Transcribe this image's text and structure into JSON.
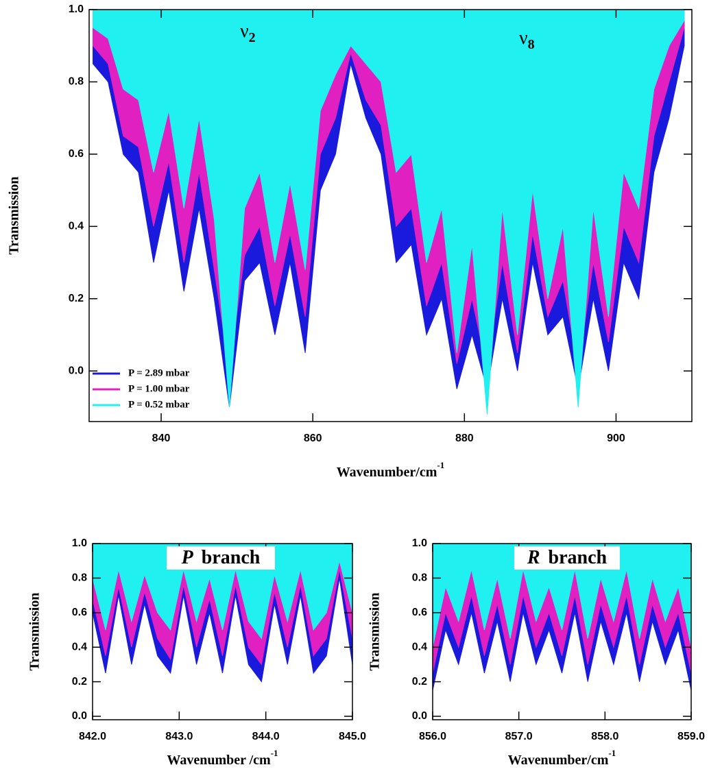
{
  "chart_data": [
    {
      "type": "area",
      "x_label": {
        "text": "Wavenumber/cm",
        "sup": "-1"
      },
      "y_label": "Transmission",
      "xlim": [
        830.5,
        910
      ],
      "ylim": [
        -0.14,
        1.0
      ],
      "xticks": [
        840,
        860,
        880,
        900
      ],
      "yticks": [
        {
          "value": 0,
          "label": "0.0"
        },
        {
          "value": 0.2,
          "label": "0.2"
        },
        {
          "value": 0.4,
          "label": "0.4"
        },
        {
          "value": 0.6,
          "label": "0.6"
        },
        {
          "value": 0.8,
          "label": "0.8"
        },
        {
          "value": 1,
          "label": "1.0"
        }
      ],
      "annotations": [
        {
          "symbol": "ν",
          "subscript": "2"
        },
        {
          "symbol": "ν",
          "subscript": "8"
        }
      ],
      "legend": "lower left",
      "x": [
        831,
        833,
        835,
        837,
        839,
        841,
        843,
        845,
        847,
        849,
        851,
        853,
        855,
        857,
        859,
        861,
        863,
        865,
        867,
        869,
        871,
        873,
        875,
        877,
        879,
        881,
        883,
        885,
        887,
        889,
        891,
        893,
        895,
        897,
        899,
        901,
        903,
        905,
        907,
        909
      ],
      "series": [
        {
          "name": "P = 2.89 mbar",
          "color": "#1a1adc",
          "values": [
            0.85,
            0.8,
            0.6,
            0.55,
            0.3,
            0.5,
            0.22,
            0.45,
            0.2,
            -0.1,
            0.25,
            0.3,
            0.1,
            0.3,
            0.05,
            0.5,
            0.6,
            0.85,
            0.7,
            0.6,
            0.3,
            0.35,
            0.1,
            0.2,
            -0.05,
            0.1,
            -0.05,
            0.2,
            0,
            0.3,
            0.1,
            0.15,
            -0.05,
            0.2,
            0,
            0.3,
            0.2,
            0.55,
            0.7,
            0.9
          ]
        },
        {
          "name": "P = 1.00 mbar",
          "color": "#e020c0",
          "values": [
            0.9,
            0.85,
            0.65,
            0.62,
            0.4,
            0.58,
            0.3,
            0.55,
            0.28,
            0,
            0.32,
            0.4,
            0.18,
            0.38,
            0.15,
            0.6,
            0.7,
            0.88,
            0.75,
            0.68,
            0.4,
            0.45,
            0.18,
            0.3,
            0.02,
            0.2,
            0,
            0.3,
            0.05,
            0.38,
            0.15,
            0.25,
            0,
            0.3,
            0.08,
            0.4,
            0.3,
            0.65,
            0.8,
            0.95
          ]
        },
        {
          "name": "P = 0.52 mbar",
          "color": "#20f0f0",
          "values": [
            0.95,
            0.92,
            0.78,
            0.75,
            0.55,
            0.72,
            0.45,
            0.7,
            0.42,
            -0.1,
            0.45,
            0.55,
            0.3,
            0.52,
            0.28,
            0.72,
            0.82,
            0.9,
            0.85,
            0.8,
            0.55,
            0.6,
            0.3,
            0.45,
            0.05,
            0.35,
            -0.12,
            0.45,
            0.1,
            0.5,
            0.2,
            0.4,
            -0.1,
            0.45,
            0.15,
            0.55,
            0.45,
            0.78,
            0.9,
            0.97
          ]
        }
      ]
    },
    {
      "type": "area",
      "x_label": {
        "text": "Wavenumber /cm",
        "sup": "-1"
      },
      "y_label": "Transmission",
      "branch": {
        "italic": "P",
        "text": "branch"
      },
      "xlim": [
        842,
        845
      ],
      "ylim": [
        -0.02,
        1.0
      ],
      "xticks": [
        {
          "value": 842,
          "label": "842.0"
        },
        {
          "value": 843,
          "label": "843.0"
        },
        {
          "value": 844,
          "label": "844.0"
        },
        {
          "value": 845,
          "label": "845.0"
        }
      ],
      "yticks": [
        {
          "value": 0,
          "label": "0.0"
        },
        {
          "value": 0.2,
          "label": "0.2"
        },
        {
          "value": 0.4,
          "label": "0.4"
        },
        {
          "value": 0.6,
          "label": "0.6"
        },
        {
          "value": 0.8,
          "label": "0.8"
        },
        {
          "value": 1,
          "label": "1.0"
        }
      ],
      "x": [
        842,
        842.15,
        842.3,
        842.45,
        842.6,
        842.75,
        842.9,
        843.05,
        843.2,
        843.35,
        843.5,
        843.65,
        843.8,
        843.95,
        844.1,
        844.25,
        844.4,
        844.55,
        844.7,
        844.85,
        845
      ],
      "series": [
        {
          "color": "#1a1adc",
          "values": [
            0.6,
            0.25,
            0.7,
            0.3,
            0.65,
            0.35,
            0.25,
            0.7,
            0.3,
            0.6,
            0.25,
            0.7,
            0.3,
            0.2,
            0.65,
            0.3,
            0.7,
            0.25,
            0.35,
            0.8,
            0.3
          ]
        },
        {
          "color": "#e020c0",
          "values": [
            0.68,
            0.35,
            0.75,
            0.4,
            0.72,
            0.45,
            0.33,
            0.76,
            0.4,
            0.68,
            0.35,
            0.76,
            0.4,
            0.3,
            0.72,
            0.4,
            0.76,
            0.35,
            0.45,
            0.85,
            0.45
          ]
        },
        {
          "color": "#20f0f0",
          "values": [
            0.8,
            0.5,
            0.85,
            0.55,
            0.82,
            0.6,
            0.5,
            0.85,
            0.55,
            0.8,
            0.5,
            0.85,
            0.55,
            0.45,
            0.82,
            0.55,
            0.85,
            0.5,
            0.6,
            0.9,
            0.6
          ]
        }
      ]
    },
    {
      "type": "area",
      "x_label": {
        "text": "Wavenumber/cm",
        "sup": "-1"
      },
      "y_label": "Transmission",
      "branch": {
        "italic": "R",
        "text": "branch"
      },
      "xlim": [
        856,
        859
      ],
      "ylim": [
        -0.02,
        1.0
      ],
      "xticks": [
        {
          "value": 856,
          "label": "856.0"
        },
        {
          "value": 857,
          "label": "857.0"
        },
        {
          "value": 858,
          "label": "858.0"
        },
        {
          "value": 859,
          "label": "859.0"
        }
      ],
      "yticks": [
        {
          "value": 0,
          "label": "0.0"
        },
        {
          "value": 0.2,
          "label": "0.2"
        },
        {
          "value": 0.4,
          "label": "0.4"
        },
        {
          "value": 0.6,
          "label": "0.6"
        },
        {
          "value": 0.8,
          "label": "0.8"
        },
        {
          "value": 1,
          "label": "1.0"
        }
      ],
      "x": [
        856,
        856.15,
        856.3,
        856.45,
        856.6,
        856.75,
        856.9,
        857.05,
        857.2,
        857.35,
        857.5,
        857.65,
        857.8,
        857.95,
        858.1,
        858.25,
        858.4,
        858.55,
        858.7,
        858.85,
        859
      ],
      "series": [
        {
          "color": "#1a1adc",
          "values": [
            0.15,
            0.5,
            0.3,
            0.6,
            0.25,
            0.55,
            0.2,
            0.6,
            0.3,
            0.5,
            0.25,
            0.6,
            0.2,
            0.55,
            0.3,
            0.6,
            0.2,
            0.55,
            0.3,
            0.5,
            0.15
          ]
        },
        {
          "color": "#e020c0",
          "values": [
            0.25,
            0.6,
            0.4,
            0.7,
            0.35,
            0.65,
            0.3,
            0.7,
            0.4,
            0.6,
            0.35,
            0.7,
            0.3,
            0.65,
            0.4,
            0.7,
            0.3,
            0.65,
            0.4,
            0.6,
            0.25
          ]
        },
        {
          "color": "#20f0f0",
          "values": [
            0.4,
            0.75,
            0.55,
            0.85,
            0.5,
            0.8,
            0.45,
            0.85,
            0.55,
            0.75,
            0.5,
            0.85,
            0.45,
            0.8,
            0.55,
            0.85,
            0.45,
            0.8,
            0.55,
            0.75,
            0.4
          ]
        }
      ]
    }
  ]
}
